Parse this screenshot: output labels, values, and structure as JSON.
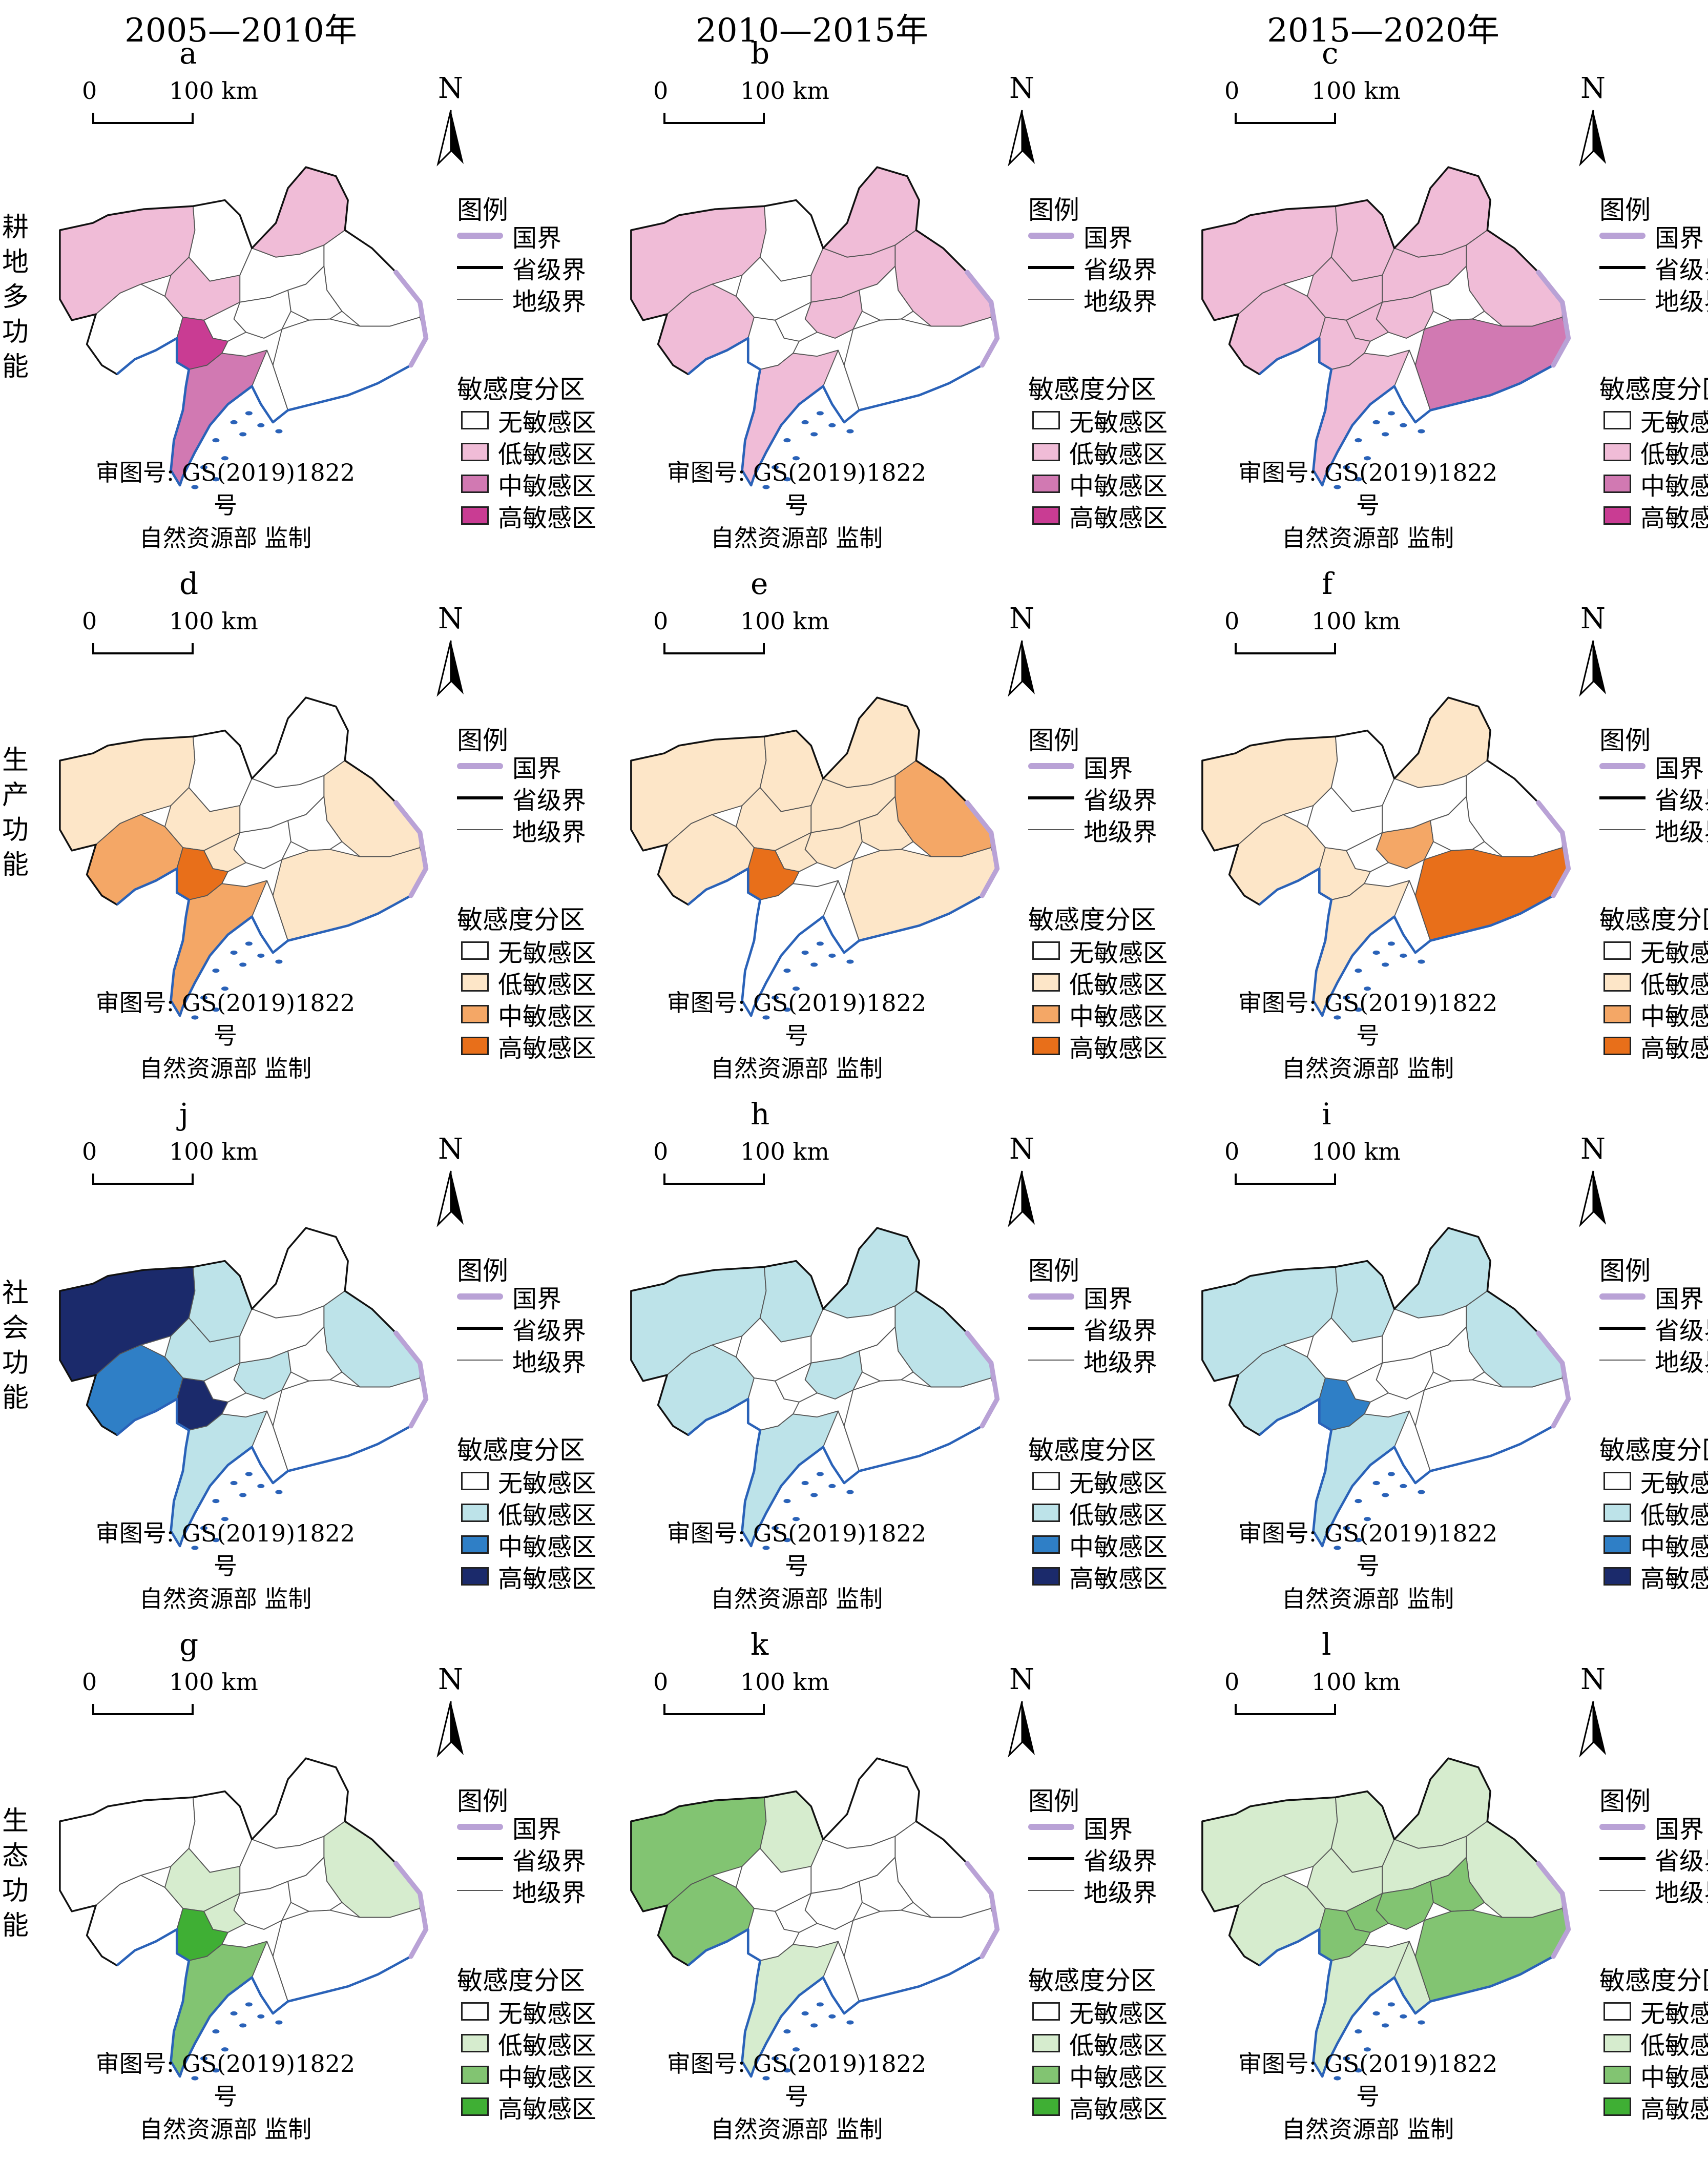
{
  "column_titles": [
    "2005—2010年",
    "2010—2015年",
    "2015—2020年"
  ],
  "row_labels": [
    "耕地多功能",
    "生产功能",
    "社会功能",
    "生态功能"
  ],
  "scale": {
    "zero": "0",
    "label": "100 km"
  },
  "north": "N",
  "legend": {
    "title": "图例",
    "boundaries": [
      "国界",
      "省级界",
      "地级界"
    ],
    "zone_title": "敏感度分区",
    "zones": [
      "无敏感区",
      "低敏感区",
      "中敏感区",
      "高敏感区"
    ]
  },
  "approval": {
    "line1": "审图号: GS(2019)1822号",
    "line2": "自然资源部 监制"
  },
  "colors": {
    "border_national": "#b9a2d6",
    "coast": "#2a62b8",
    "pink": [
      "#ffffff",
      "#f0bcd7",
      "#d179b2",
      "#c93c93"
    ],
    "orange": [
      "#ffffff",
      "#fde6c8",
      "#f4a766",
      "#e86f1a"
    ],
    "blue": [
      "#ffffff",
      "#bde3e9",
      "#2f7fc6",
      "#1b2a6b"
    ],
    "green": [
      "#ffffff",
      "#d6ecce",
      "#82c472",
      "#3faf34"
    ]
  },
  "rows": [
    {
      "theme": "pink",
      "panels": [
        {
          "label": "a",
          "regions": [
            1,
            0,
            0,
            1,
            1,
            0,
            0,
            0,
            0,
            0,
            3,
            2,
            0,
            0
          ]
        },
        {
          "label": "b",
          "regions": [
            1,
            1,
            0,
            1,
            0,
            1,
            1,
            0,
            1,
            0,
            0,
            1,
            0,
            0
          ]
        },
        {
          "label": "c",
          "regions": [
            1,
            1,
            1,
            1,
            1,
            1,
            1,
            0,
            1,
            1,
            1,
            1,
            2,
            0
          ]
        }
      ]
    },
    {
      "theme": "orange",
      "panels": [
        {
          "label": "d",
          "regions": [
            1,
            2,
            0,
            0,
            1,
            1,
            0,
            0,
            0,
            1,
            3,
            2,
            1,
            0
          ]
        },
        {
          "label": "e",
          "regions": [
            1,
            1,
            1,
            1,
            1,
            2,
            1,
            1,
            1,
            1,
            3,
            0,
            1,
            0
          ]
        },
        {
          "label": "f",
          "regions": [
            1,
            1,
            0,
            1,
            0,
            0,
            0,
            0,
            2,
            0,
            1,
            1,
            3,
            0
          ]
        }
      ]
    },
    {
      "theme": "blue",
      "panels": [
        {
          "label": "j",
          "regions": [
            3,
            2,
            1,
            0,
            1,
            1,
            0,
            0,
            1,
            0,
            3,
            1,
            0,
            0
          ]
        },
        {
          "label": "h",
          "regions": [
            1,
            1,
            1,
            1,
            0,
            1,
            0,
            0,
            1,
            0,
            0,
            1,
            0,
            0
          ]
        },
        {
          "label": "i",
          "regions": [
            1,
            1,
            1,
            1,
            0,
            1,
            0,
            0,
            0,
            0,
            2,
            1,
            0,
            0
          ]
        }
      ]
    },
    {
      "theme": "green",
      "panels": [
        {
          "label": "g",
          "regions": [
            0,
            0,
            0,
            0,
            1,
            1,
            0,
            0,
            0,
            1,
            3,
            2,
            0,
            0
          ]
        },
        {
          "label": "k",
          "regions": [
            2,
            2,
            1,
            0,
            0,
            0,
            0,
            0,
            0,
            0,
            0,
            1,
            0,
            0
          ]
        },
        {
          "label": "l",
          "regions": [
            1,
            1,
            1,
            1,
            1,
            1,
            1,
            2,
            2,
            2,
            2,
            1,
            2,
            1
          ]
        }
      ]
    }
  ]
}
